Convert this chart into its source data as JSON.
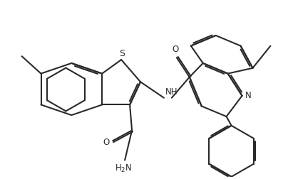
{
  "bg_color": "#ffffff",
  "line_color": "#2a2a2a",
  "line_width": 1.5,
  "font_size": 8.5,
  "figsize": [
    4.11,
    2.52
  ],
  "dpi": 100,
  "xlim": [
    0,
    10.5
  ],
  "ylim": [
    0,
    6.3
  ]
}
